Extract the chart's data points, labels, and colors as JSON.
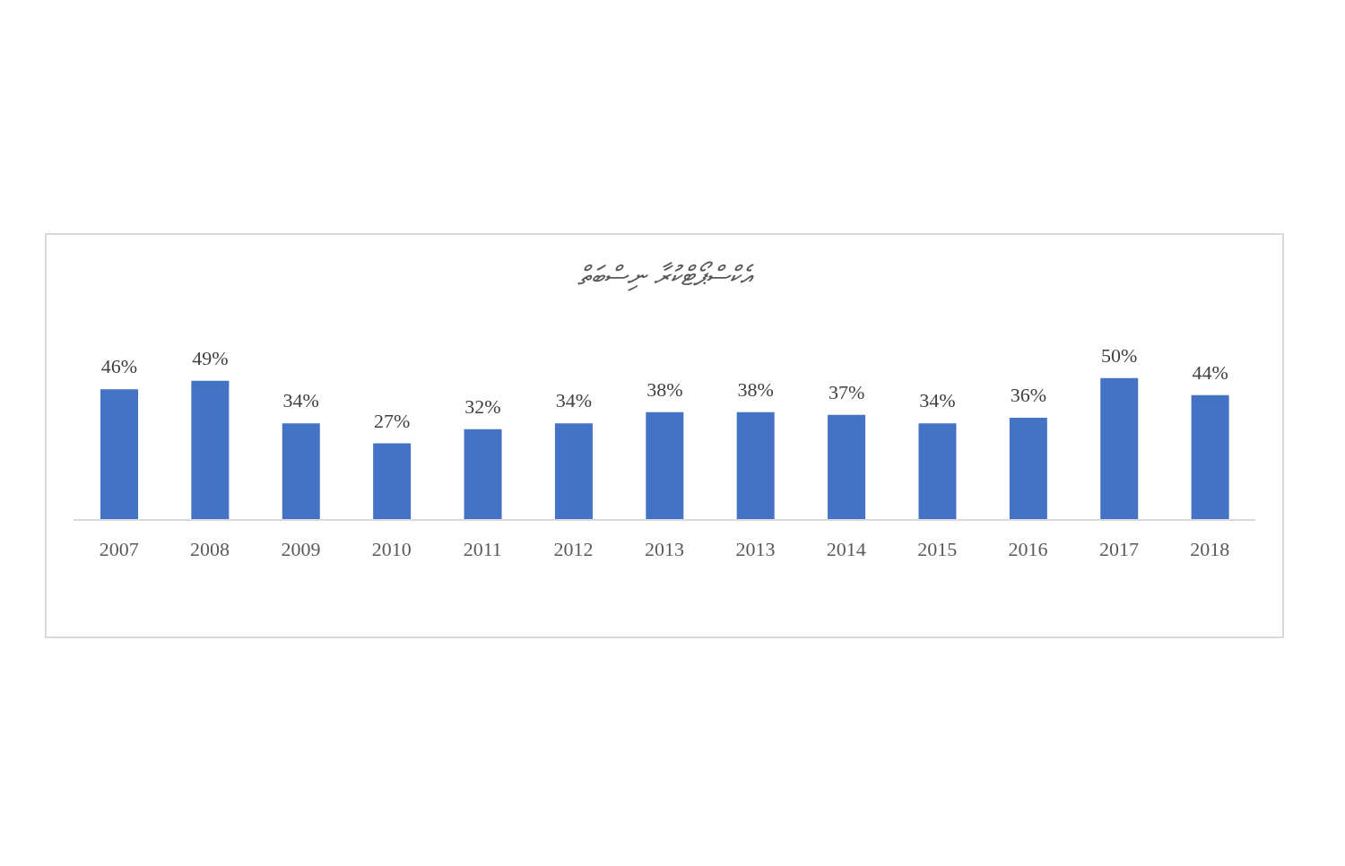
{
  "chart_data": {
    "type": "bar",
    "title": "އެކްސްޕޯޓްކުރާ ނިސްބަތް",
    "categories": [
      "2007",
      "2008",
      "2009",
      "2010",
      "2011",
      "2012",
      "2013",
      "2013",
      "2014",
      "2015",
      "2016",
      "2017",
      "2018"
    ],
    "values": [
      46,
      49,
      34,
      27,
      32,
      34,
      38,
      38,
      37,
      34,
      36,
      50,
      44
    ],
    "value_labels": [
      "46%",
      "49%",
      "34%",
      "27%",
      "32%",
      "34%",
      "38%",
      "38%",
      "37%",
      "34%",
      "36%",
      "50%",
      "44%"
    ],
    "color": "#4472c4",
    "grid": false,
    "legend": false
  }
}
